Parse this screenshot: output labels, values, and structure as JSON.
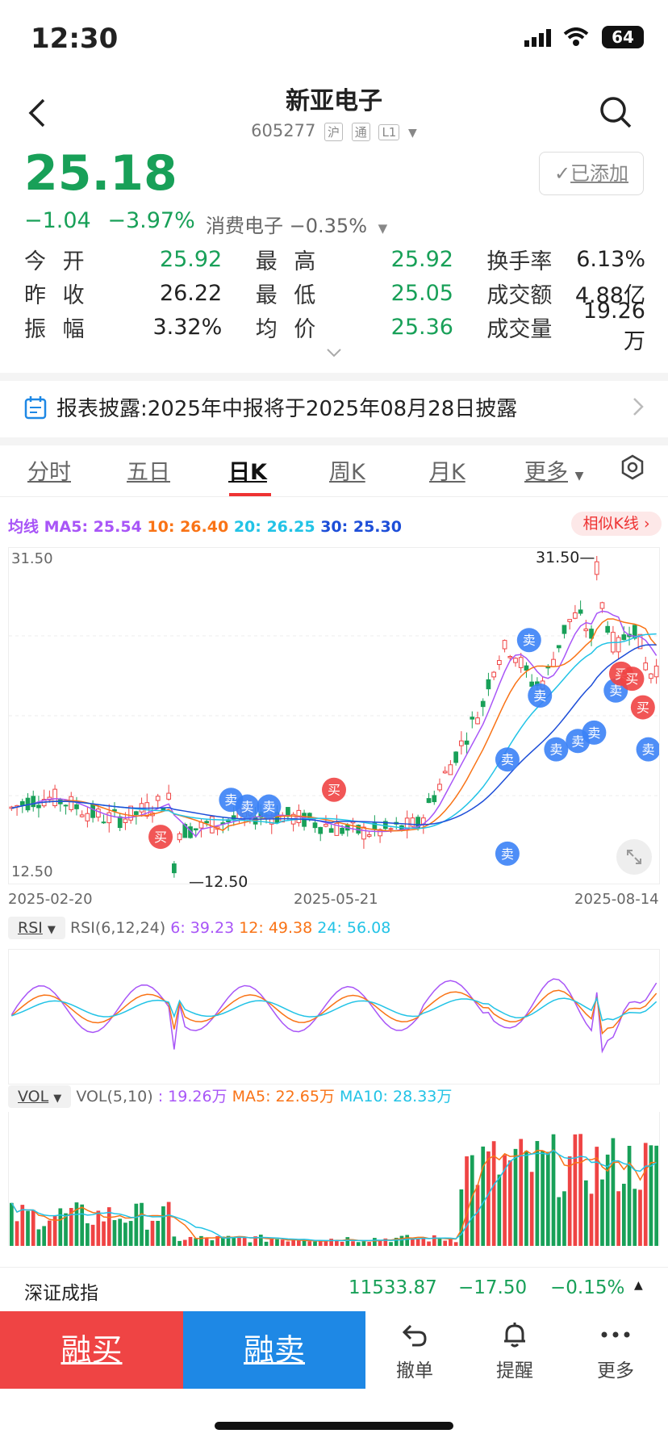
{
  "status": {
    "time": "12:30",
    "battery": "64"
  },
  "header": {
    "title": "新亚电子",
    "code": "605277",
    "tags": [
      "沪",
      "通",
      "L1"
    ],
    "added_label": "已添加"
  },
  "quote": {
    "price": "25.18",
    "change": "−1.04",
    "change_pct": "−3.97%",
    "sector": "消费电子",
    "sector_pct": "−0.35%"
  },
  "stats": [
    [
      {
        "label": "今 开",
        "value": "25.92",
        "green": true
      },
      {
        "label": "最 高",
        "value": "25.92",
        "green": true
      },
      {
        "label": "换手率",
        "value": "6.13%",
        "green": false
      }
    ],
    [
      {
        "label": "昨 收",
        "value": "26.22",
        "green": false
      },
      {
        "label": "最 低",
        "value": "25.05",
        "green": true
      },
      {
        "label": "成交额",
        "value": "4.88亿",
        "green": false
      }
    ],
    [
      {
        "label": "振 幅",
        "value": "3.32%",
        "green": false
      },
      {
        "label": "均 价",
        "value": "25.36",
        "green": true
      },
      {
        "label": "成交量",
        "value": "19.26万",
        "green": false
      }
    ]
  ],
  "notice": "报表披露:2025年中报将于2025年08月28日披露",
  "tabs": [
    "分时",
    "五日",
    "日K",
    "周K",
    "月K",
    "更多"
  ],
  "ma_legend": {
    "label": "均线",
    "ma5": "MA5: 25.54",
    "ma10": "10: 26.40",
    "ma20": "20: 26.25",
    "ma30": "30: 25.30"
  },
  "similar_label": "相似K线",
  "colors": {
    "up": "#ef4444",
    "down": "#18a058",
    "ma5": "#a855f7",
    "ma10": "#f97316",
    "ma20": "#22c3e6",
    "ma30": "#1d4ed8"
  },
  "kline": {
    "y_max": "31.50",
    "y_min": "12.50",
    "high_label": "31.50",
    "low_label": "12.50",
    "dates": [
      "2025-02-20",
      "2025-05-21",
      "2025-08-14"
    ],
    "markers": [
      "卖",
      "买"
    ]
  },
  "rsi": {
    "btn": "RSI",
    "params": "RSI(6,12,24)",
    "v6": "6: 39.23",
    "v12": "12: 49.38",
    "v24": "24: 56.08"
  },
  "vol": {
    "btn": "VOL",
    "params": "VOL(5,10)",
    "value": ": 19.26万",
    "ma5": "MA5: 22.65万",
    "ma10": "MA10: 28.33万"
  },
  "index_bar": {
    "name": "深证成指",
    "value": "11533.87",
    "change": "−17.50",
    "pct": "−0.15%"
  },
  "actions": {
    "buy": "融买",
    "sell": "融卖",
    "cancel": "撤单",
    "alert": "提醒",
    "more": "更多"
  }
}
